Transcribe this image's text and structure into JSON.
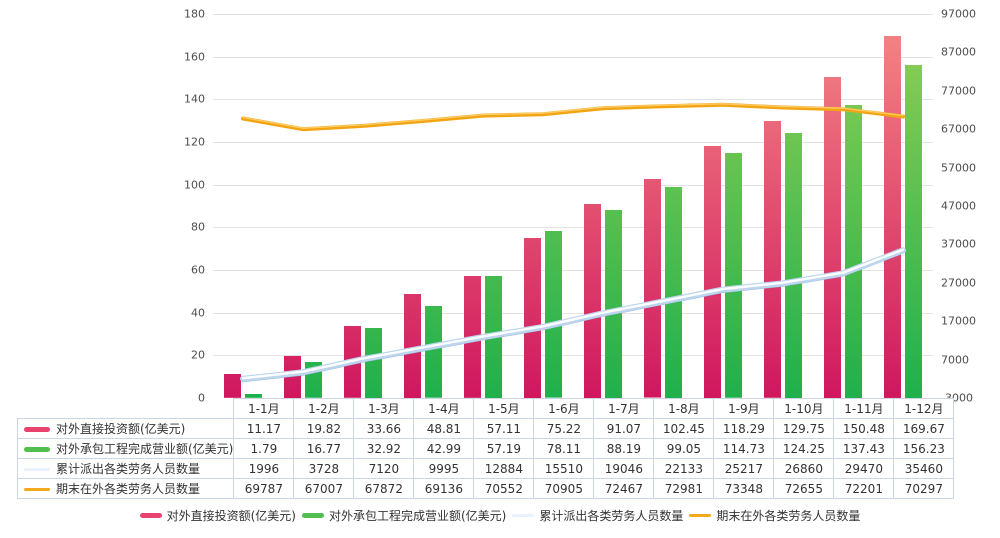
{
  "chart_data": {
    "type": "combo-bar-line",
    "categories": [
      "1-1月",
      "1-2月",
      "1-3月",
      "1-4月",
      "1-5月",
      "1-6月",
      "1-7月",
      "1-8月",
      "1-9月",
      "1-10月",
      "1-11月",
      "1-12月"
    ],
    "left_axis": {
      "min": 0,
      "max": 180,
      "step": 20,
      "ticks": [
        "180",
        "160",
        "140",
        "120",
        "100",
        "80",
        "60",
        "40",
        "20",
        "0"
      ]
    },
    "right_axis": {
      "min": -3000,
      "max": 97000,
      "step": 10000,
      "ticks": [
        "97000",
        "87000",
        "77000",
        "67000",
        "57000",
        "47000",
        "37000",
        "27000",
        "17000",
        "7000",
        "-3000"
      ]
    },
    "grid": true,
    "legend_position": "bottom",
    "series": [
      {
        "name": "对外直接投资额(亿美元)",
        "type": "bar",
        "axis": "left",
        "color_top": "#F58884",
        "color_bottom": "#D0175E",
        "values": [
          11.17,
          19.82,
          33.66,
          48.81,
          57.11,
          75.22,
          91.07,
          102.45,
          118.29,
          129.75,
          150.48,
          169.67
        ]
      },
      {
        "name": "对外承包工程完成营业额(亿美元)",
        "type": "bar",
        "axis": "left",
        "color_top": "#93CF55",
        "color_bottom": "#1FB04C",
        "values": [
          1.79,
          16.77,
          32.92,
          42.99,
          57.19,
          78.11,
          88.19,
          99.05,
          114.73,
          124.25,
          137.43,
          156.23
        ]
      },
      {
        "name": "累计派出各类劳务人员数量",
        "type": "line",
        "axis": "right",
        "color": "#BDD6EE",
        "color_core": "#FFFFFF",
        "color_shadow": "#8FB3D9",
        "values": [
          1996,
          3728,
          7120,
          9995,
          12884,
          15510,
          19046,
          22133,
          25217,
          26860,
          29470,
          35460
        ]
      },
      {
        "name": "期末在外各类劳务人员数量",
        "type": "line",
        "axis": "right",
        "color": "#F2A413",
        "color_highlight": "#FFCC66",
        "values": [
          69787,
          67007,
          67872,
          69136,
          70552,
          70905,
          72467,
          72981,
          73348,
          72655,
          72201,
          70297
        ]
      }
    ],
    "colors": {
      "grid": "#E3E3E3",
      "axis_text": "#4D4D4D",
      "text": "#333333",
      "table_border": "#C9D6E4",
      "legend_red": "#E8436E",
      "legend_green": "#52BE50",
      "legend_blue": "#E9F1FA",
      "legend_orange": "#F5A81D"
    }
  }
}
